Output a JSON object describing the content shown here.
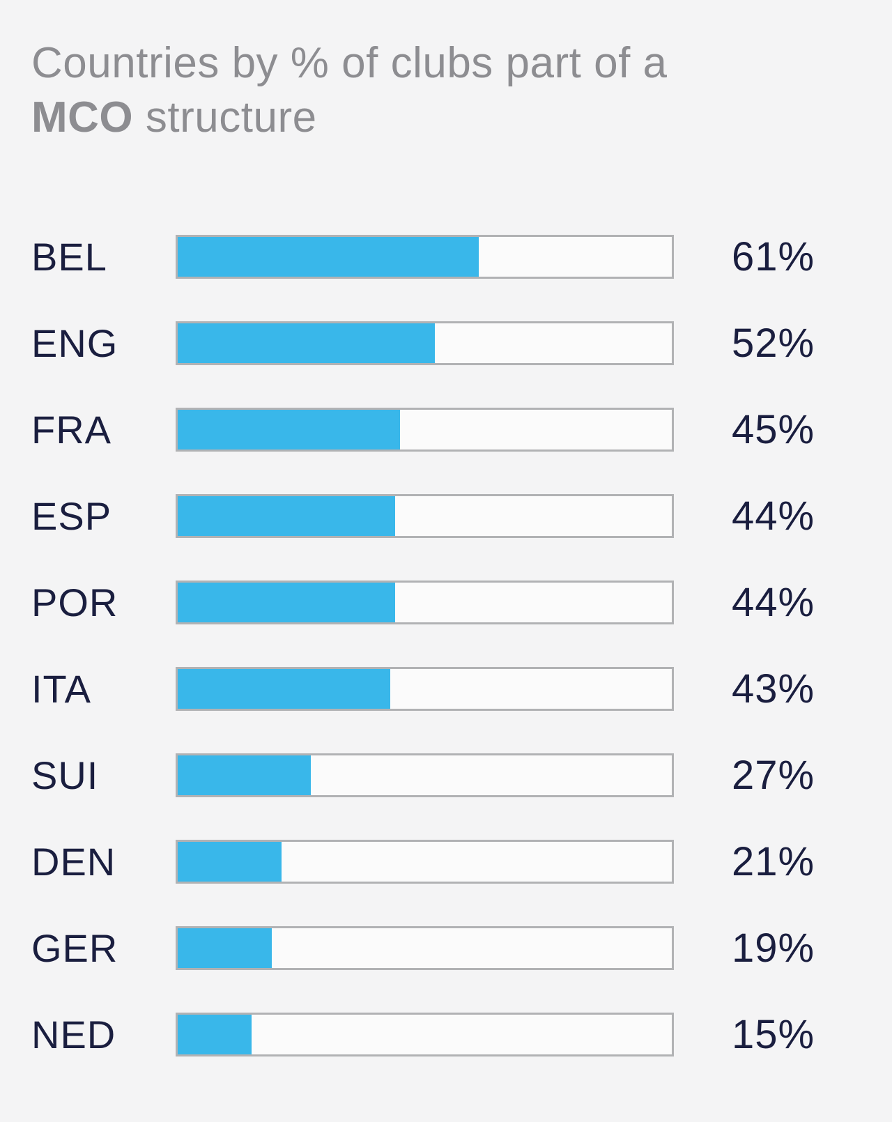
{
  "header": {
    "line1": "Countries by % of clubs part of a",
    "line2_bold": "MCO",
    "line2_rest": " structure"
  },
  "colors": {
    "background": "#f4f4f5",
    "bar_fill": "#39b7ea",
    "bar_track": "#fbfbfb",
    "bar_border": "#b1b2b4",
    "label_text": "#1a1e3f",
    "title_text": "#8d8d91"
  },
  "chart_data": {
    "type": "bar",
    "orientation": "horizontal",
    "title": "Countries by % of clubs part of a MCO structure",
    "categories": [
      "BEL",
      "ENG",
      "FRA",
      "ESP",
      "POR",
      "ITA",
      "SUI",
      "DEN",
      "GER",
      "NED"
    ],
    "values": [
      61,
      52,
      45,
      44,
      44,
      43,
      27,
      21,
      19,
      15
    ],
    "value_labels": [
      "61%",
      "52%",
      "45%",
      "44%",
      "44%",
      "43%",
      "27%",
      "21%",
      "19%",
      "15%"
    ],
    "xlabel": "",
    "ylabel": "",
    "xlim": [
      0,
      100
    ],
    "grid": false,
    "legend": false,
    "unit": "%"
  }
}
